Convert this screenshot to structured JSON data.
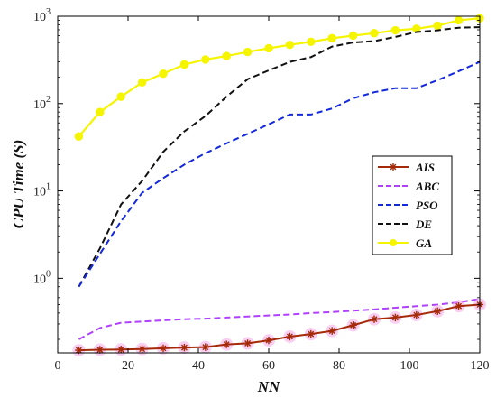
{
  "chart_data": {
    "type": "line",
    "xlabel": "NN",
    "ylabel": "CPU Time (S)",
    "xlim": [
      0,
      120
    ],
    "ylim": [
      0.14,
      1000
    ],
    "yscale": "log",
    "x_ticks": [
      0,
      20,
      40,
      60,
      80,
      100,
      120
    ],
    "x_tick_labels": [
      "0",
      "20",
      "40",
      "60",
      "80",
      "100",
      "120"
    ],
    "y_ticks": [
      1,
      10,
      100,
      1000
    ],
    "y_tick_labels": [
      {
        "base": "10",
        "exp": "0"
      },
      {
        "base": "10",
        "exp": "1"
      },
      {
        "base": "10",
        "exp": "2"
      },
      {
        "base": "10",
        "exp": "3"
      }
    ],
    "grid": false,
    "legend_position": "center-right",
    "series": [
      {
        "name": "AIS",
        "color": "#a52a0a",
        "style": "solid-asterisk",
        "x": [
          6,
          12,
          18,
          24,
          30,
          36,
          42,
          48,
          54,
          60,
          66,
          72,
          78,
          84,
          90,
          96,
          102,
          108,
          114,
          120
        ],
        "y": [
          0.15,
          0.152,
          0.153,
          0.155,
          0.158,
          0.161,
          0.163,
          0.175,
          0.18,
          0.195,
          0.215,
          0.23,
          0.25,
          0.29,
          0.34,
          0.355,
          0.38,
          0.42,
          0.48,
          0.5
        ]
      },
      {
        "name": "ABC",
        "color": "#b040ff",
        "style": "dashed",
        "x": [
          6,
          12,
          18,
          24,
          30,
          36,
          42,
          48,
          54,
          60,
          66,
          72,
          78,
          84,
          90,
          96,
          102,
          108,
          114,
          120
        ],
        "y": [
          0.2,
          0.27,
          0.31,
          0.32,
          0.33,
          0.34,
          0.345,
          0.355,
          0.365,
          0.375,
          0.385,
          0.4,
          0.41,
          0.425,
          0.44,
          0.46,
          0.48,
          0.5,
          0.53,
          0.58
        ]
      },
      {
        "name": "PSO",
        "color": "#1428dc",
        "style": "dashed",
        "x": [
          6,
          12,
          18,
          24,
          30,
          36,
          42,
          48,
          54,
          60,
          66,
          72,
          78,
          84,
          90,
          96,
          102,
          108,
          114,
          120
        ],
        "y": [
          0.8,
          1.9,
          4.5,
          9.5,
          14,
          20,
          27,
          35,
          45,
          58,
          75,
          75,
          88,
          115,
          135,
          150,
          150,
          185,
          235,
          300
        ]
      },
      {
        "name": "DE",
        "color": "#111111",
        "style": "dashed",
        "x": [
          6,
          12,
          18,
          24,
          30,
          36,
          42,
          48,
          54,
          60,
          66,
          72,
          78,
          84,
          90,
          96,
          102,
          108,
          114,
          120
        ],
        "y": [
          0.8,
          2.2,
          7,
          13,
          28,
          48,
          72,
          120,
          190,
          240,
          300,
          340,
          450,
          500,
          520,
          580,
          660,
          690,
          740,
          750
        ]
      },
      {
        "name": "GA",
        "color": "#f5f500",
        "style": "solid-dot",
        "x": [
          6,
          12,
          18,
          24,
          30,
          36,
          42,
          48,
          54,
          60,
          66,
          72,
          78,
          84,
          90,
          96,
          102,
          108,
          114,
          120
        ],
        "y": [
          42,
          80,
          120,
          175,
          220,
          280,
          320,
          350,
          390,
          430,
          470,
          510,
          560,
          600,
          640,
          690,
          720,
          780,
          900,
          950
        ]
      }
    ]
  }
}
